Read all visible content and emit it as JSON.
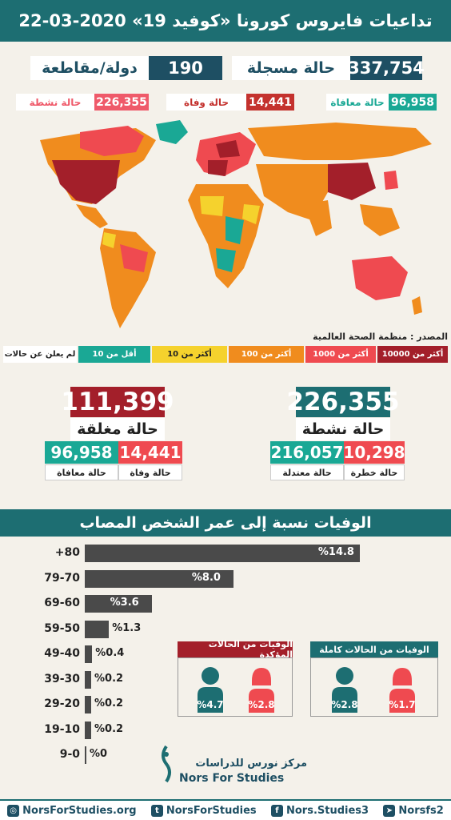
{
  "header": {
    "title": "تداعيات فايروس كورونا «كوفيد 19» 2020-03-22"
  },
  "summary": {
    "total_cases": "337,754",
    "total_cases_label": "حالة مسجلة",
    "countries": "190",
    "countries_label": "دولة/مقاطعة",
    "recovered": "96,958",
    "recovered_label": "حالة معافاة",
    "deaths": "14,441",
    "deaths_label": "حالة وفاة",
    "active": "226,355",
    "active_label": "حالة نشطة"
  },
  "map": {
    "source": "المصدر : منظمة الصحة العالمية",
    "legend": [
      {
        "label": "أكثر من 10000",
        "color": "#a31f2a"
      },
      {
        "label": "أكثر من 1000",
        "color": "#ef4a50"
      },
      {
        "label": "أكثر من 100",
        "color": "#f08c1e"
      },
      {
        "label": "أكثر من 10",
        "color": "#f5d22d"
      },
      {
        "label": "أقل من 10",
        "color": "#1aa895"
      },
      {
        "label": "لم يعلن عن حالات",
        "color": "#ffffff"
      }
    ]
  },
  "active_cases": {
    "value": "226,355",
    "label": "حالة نشطة",
    "critical": "10,298",
    "critical_label": "حالة خطرة",
    "mild": "216,057",
    "mild_label": "حالة معتدلة"
  },
  "closed_cases": {
    "value": "111,399",
    "label": "حالة مغلقة",
    "deaths": "14,441",
    "deaths_label": "حالة وفاة",
    "recovered": "96,958",
    "recovered_label": "حالة معافاة"
  },
  "age_section": {
    "title": "الوفيات نسبة إلى عمر الشخص المصاب",
    "chart_data": {
      "type": "bar",
      "categories": [
        "+80",
        "79-70",
        "69-60",
        "59-50",
        "49-40",
        "39-30",
        "29-20",
        "19-10",
        "9-0"
      ],
      "values": [
        14.8,
        8.0,
        3.6,
        1.3,
        0.4,
        0.2,
        0.2,
        0.2,
        0
      ],
      "labels": [
        "%14.8",
        "%8.0",
        "%3.6",
        "%1.3",
        "%0.4",
        "%0.2",
        "%0.2",
        "%0.2",
        "%0"
      ],
      "xlim": [
        0,
        17
      ]
    }
  },
  "fatality_panels": {
    "confirmed_title": "الوفيات من الحالات المؤكدة",
    "confirmed_female": "%2.8",
    "confirmed_male": "%4.7",
    "all_title": "الوفيات من الحالات كاملة",
    "all_female": "%1.7",
    "all_male": "%2.8",
    "female_color": "#ef4a50",
    "male_color": "#1d6e72"
  },
  "brand": {
    "name_ar": "مركز نورس للدراسات",
    "name_en": "Nors For Studies"
  },
  "footer": {
    "website": "NorsForStudies.org",
    "twitter": "NorsForStudies",
    "facebook": "Nors.Studies3",
    "telegram": "Norsfs2"
  }
}
